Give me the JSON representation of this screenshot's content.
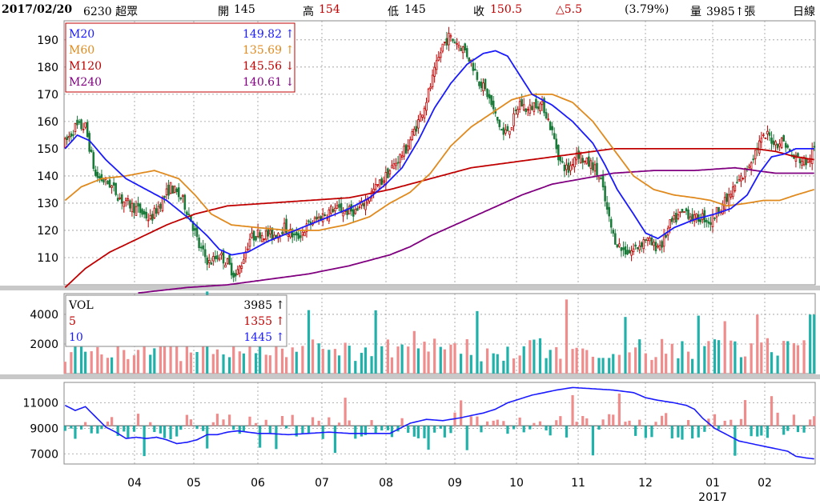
{
  "header": {
    "date": "2017/02/20",
    "stock": "6230 超眾",
    "open_label": "開",
    "open_value": "145",
    "high_label": "高",
    "high_value": "154",
    "low_label": "低",
    "low_value": "145",
    "close_label": "收",
    "close_value": "150.5",
    "change": "△5.5",
    "change_pct": "(3.79%)",
    "volume_label": "量",
    "volume_value": "3985↑張",
    "period": "日線"
  },
  "legend_main": [
    {
      "name": "M20",
      "value": "149.82",
      "arrow": "↑",
      "color": "#1a1aff"
    },
    {
      "name": "M60",
      "value": "135.69",
      "arrow": "↑",
      "color": "#e08a1e"
    },
    {
      "name": "M120",
      "value": "145.56",
      "arrow": "↓",
      "color": "#c00000"
    },
    {
      "name": "M240",
      "value": "140.61",
      "arrow": "↓",
      "color": "#800080"
    }
  ],
  "legend_vol": [
    {
      "name": "VOL",
      "value": "3985",
      "arrow": "↑",
      "color": "#000000"
    },
    {
      "name": "5",
      "value": "1355",
      "arrow": "↑",
      "color": "#c00000"
    },
    {
      "name": "10",
      "value": "1445",
      "arrow": "↑",
      "color": "#1a1aff"
    }
  ],
  "colors": {
    "up": "#f08c8c",
    "up_line": "#c00000",
    "down": "#20b2aa",
    "grid": "#999999",
    "sep": "#c8c8c8"
  },
  "chart_data": [
    {
      "type": "candlestick",
      "ylim": [
        100,
        197
      ],
      "yticks": [
        110,
        120,
        130,
        140,
        150,
        160,
        170,
        180,
        190
      ],
      "x_labels": [
        "04",
        "05",
        "06",
        "07",
        "08",
        "09",
        "10",
        "11",
        "12",
        "01",
        "02"
      ],
      "year_label": "2017",
      "price_path": [
        [
          0,
          152
        ],
        [
          5,
          158
        ],
        [
          10,
          158
        ],
        [
          15,
          140
        ],
        [
          22,
          137
        ],
        [
          28,
          131
        ],
        [
          35,
          128
        ],
        [
          42,
          124
        ],
        [
          47,
          130
        ],
        [
          52,
          136
        ],
        [
          58,
          131
        ],
        [
          62,
          124
        ],
        [
          66,
          114
        ],
        [
          71,
          108
        ],
        [
          76,
          111
        ],
        [
          80,
          108
        ],
        [
          84,
          103
        ],
        [
          87,
          108
        ],
        [
          91,
          117
        ],
        [
          96,
          119
        ],
        [
          102,
          118
        ],
        [
          108,
          121
        ],
        [
          114,
          117
        ],
        [
          120,
          122
        ],
        [
          126,
          125
        ],
        [
          132,
          128
        ],
        [
          138,
          127
        ],
        [
          144,
          127
        ],
        [
          150,
          133
        ],
        [
          156,
          138
        ],
        [
          162,
          144
        ],
        [
          168,
          150
        ],
        [
          174,
          160
        ],
        [
          178,
          168
        ],
        [
          182,
          178
        ],
        [
          186,
          188
        ],
        [
          189,
          191
        ],
        [
          193,
          189
        ],
        [
          197,
          186
        ],
        [
          200,
          182
        ],
        [
          204,
          175
        ],
        [
          208,
          170
        ],
        [
          212,
          162
        ],
        [
          216,
          155
        ],
        [
          220,
          159
        ],
        [
          224,
          167
        ],
        [
          228,
          164
        ],
        [
          232,
          167
        ],
        [
          236,
          165
        ],
        [
          240,
          156
        ],
        [
          244,
          145
        ],
        [
          248,
          142
        ],
        [
          252,
          149
        ],
        [
          256,
          145
        ],
        [
          260,
          144
        ],
        [
          264,
          138
        ],
        [
          267,
          127
        ],
        [
          270,
          118
        ],
        [
          274,
          113
        ],
        [
          278,
          112
        ],
        [
          282,
          114
        ],
        [
          286,
          117
        ],
        [
          290,
          114
        ],
        [
          294,
          115
        ],
        [
          298,
          122
        ],
        [
          302,
          125
        ],
        [
          306,
          127
        ],
        [
          310,
          124
        ],
        [
          314,
          125
        ],
        [
          318,
          123
        ],
        [
          322,
          128
        ],
        [
          326,
          131
        ],
        [
          330,
          136
        ],
        [
          334,
          140
        ],
        [
          338,
          146
        ],
        [
          342,
          152
        ],
        [
          346,
          155
        ],
        [
          350,
          152
        ],
        [
          354,
          153
        ],
        [
          358,
          147
        ],
        [
          362,
          146
        ],
        [
          366,
          145
        ],
        [
          369,
          150
        ]
      ],
      "m20": [
        [
          0,
          150
        ],
        [
          6,
          155
        ],
        [
          12,
          153
        ],
        [
          20,
          146
        ],
        [
          30,
          139
        ],
        [
          40,
          135
        ],
        [
          50,
          131
        ],
        [
          60,
          125
        ],
        [
          70,
          118
        ],
        [
          76,
          113
        ],
        [
          82,
          111
        ],
        [
          90,
          112
        ],
        [
          100,
          116
        ],
        [
          110,
          119
        ],
        [
          120,
          122
        ],
        [
          130,
          125
        ],
        [
          140,
          128
        ],
        [
          150,
          132
        ],
        [
          158,
          137
        ],
        [
          166,
          143
        ],
        [
          174,
          153
        ],
        [
          182,
          165
        ],
        [
          190,
          174
        ],
        [
          198,
          181
        ],
        [
          206,
          185
        ],
        [
          212,
          186
        ],
        [
          218,
          184
        ],
        [
          224,
          177
        ],
        [
          230,
          170
        ],
        [
          240,
          166
        ],
        [
          250,
          160
        ],
        [
          260,
          152
        ],
        [
          266,
          144
        ],
        [
          272,
          135
        ],
        [
          280,
          126
        ],
        [
          286,
          119
        ],
        [
          292,
          117
        ],
        [
          300,
          121
        ],
        [
          310,
          124
        ],
        [
          320,
          126
        ],
        [
          328,
          128
        ],
        [
          336,
          133
        ],
        [
          342,
          141
        ],
        [
          348,
          147
        ],
        [
          354,
          148
        ],
        [
          360,
          150
        ],
        [
          369,
          150
        ]
      ],
      "m60": [
        [
          0,
          131
        ],
        [
          8,
          136
        ],
        [
          18,
          139
        ],
        [
          30,
          140
        ],
        [
          44,
          142
        ],
        [
          56,
          139
        ],
        [
          64,
          133
        ],
        [
          72,
          126
        ],
        [
          82,
          122
        ],
        [
          95,
          121
        ],
        [
          110,
          120
        ],
        [
          125,
          120
        ],
        [
          138,
          122
        ],
        [
          150,
          125
        ],
        [
          160,
          130
        ],
        [
          170,
          134
        ],
        [
          180,
          141
        ],
        [
          190,
          151
        ],
        [
          200,
          158
        ],
        [
          210,
          163
        ],
        [
          220,
          168
        ],
        [
          230,
          170
        ],
        [
          240,
          170
        ],
        [
          250,
          167
        ],
        [
          260,
          160
        ],
        [
          270,
          150
        ],
        [
          280,
          140
        ],
        [
          290,
          135
        ],
        [
          300,
          133
        ],
        [
          310,
          132
        ],
        [
          318,
          131
        ],
        [
          326,
          129
        ],
        [
          336,
          130
        ],
        [
          344,
          131
        ],
        [
          352,
          131
        ],
        [
          360,
          133
        ],
        [
          369,
          135
        ]
      ],
      "m120": [
        [
          0,
          99
        ],
        [
          10,
          106
        ],
        [
          22,
          112
        ],
        [
          36,
          117
        ],
        [
          50,
          122
        ],
        [
          64,
          126
        ],
        [
          80,
          129
        ],
        [
          100,
          130
        ],
        [
          120,
          131
        ],
        [
          140,
          132
        ],
        [
          160,
          135
        ],
        [
          180,
          139
        ],
        [
          200,
          143
        ],
        [
          220,
          145
        ],
        [
          240,
          147
        ],
        [
          260,
          149
        ],
        [
          270,
          150
        ],
        [
          285,
          150
        ],
        [
          300,
          150
        ],
        [
          320,
          150
        ],
        [
          340,
          150
        ],
        [
          350,
          149
        ],
        [
          360,
          147
        ],
        [
          369,
          146
        ]
      ],
      "m240": [
        [
          36,
          97
        ],
        [
          60,
          99
        ],
        [
          80,
          100
        ],
        [
          100,
          102
        ],
        [
          120,
          104
        ],
        [
          140,
          107
        ],
        [
          160,
          111
        ],
        [
          170,
          114
        ],
        [
          180,
          118
        ],
        [
          195,
          123
        ],
        [
          210,
          128
        ],
        [
          225,
          133
        ],
        [
          240,
          137
        ],
        [
          255,
          139
        ],
        [
          270,
          141
        ],
        [
          290,
          142
        ],
        [
          310,
          142
        ],
        [
          330,
          143
        ],
        [
          350,
          141
        ],
        [
          369,
          141
        ]
      ]
    },
    {
      "type": "bar",
      "title": "VOL",
      "ylim": [
        0,
        5400
      ],
      "yticks": [
        2000,
        4000
      ],
      "last_volume": 3985
    },
    {
      "type": "bar+line",
      "ylim_left": [
        6200,
        12600
      ],
      "yticks": [
        7000,
        9000,
        11000
      ],
      "base": 9200,
      "line": [
        [
          0,
          10800
        ],
        [
          5,
          10400
        ],
        [
          10,
          10700
        ],
        [
          15,
          9900
        ],
        [
          20,
          9100
        ],
        [
          25,
          8700
        ],
        [
          30,
          8200
        ],
        [
          35,
          8300
        ],
        [
          40,
          8200
        ],
        [
          45,
          8300
        ],
        [
          50,
          8100
        ],
        [
          55,
          7800
        ],
        [
          60,
          7900
        ],
        [
          65,
          8100
        ],
        [
          70,
          8500
        ],
        [
          75,
          8500
        ],
        [
          80,
          8700
        ],
        [
          85,
          8800
        ],
        [
          90,
          8700
        ],
        [
          95,
          8600
        ],
        [
          100,
          8600
        ],
        [
          110,
          8500
        ],
        [
          120,
          8600
        ],
        [
          130,
          8700
        ],
        [
          140,
          8600
        ],
        [
          150,
          8600
        ],
        [
          160,
          8600
        ],
        [
          170,
          9400
        ],
        [
          178,
          9700
        ],
        [
          186,
          9600
        ],
        [
          194,
          9800
        ],
        [
          200,
          10000
        ],
        [
          206,
          10200
        ],
        [
          212,
          10500
        ],
        [
          218,
          11000
        ],
        [
          224,
          11300
        ],
        [
          230,
          11600
        ],
        [
          236,
          11800
        ],
        [
          242,
          12000
        ],
        [
          250,
          12200
        ],
        [
          260,
          12100
        ],
        [
          270,
          12000
        ],
        [
          280,
          11800
        ],
        [
          286,
          11400
        ],
        [
          292,
          11200
        ],
        [
          300,
          11000
        ],
        [
          306,
          10800
        ],
        [
          310,
          10500
        ],
        [
          314,
          9800
        ],
        [
          320,
          9000
        ],
        [
          326,
          8500
        ],
        [
          332,
          8000
        ],
        [
          338,
          7800
        ],
        [
          344,
          7600
        ],
        [
          350,
          7400
        ],
        [
          356,
          7200
        ],
        [
          360,
          6800
        ],
        [
          364,
          6700
        ],
        [
          369,
          6600
        ]
      ]
    }
  ]
}
